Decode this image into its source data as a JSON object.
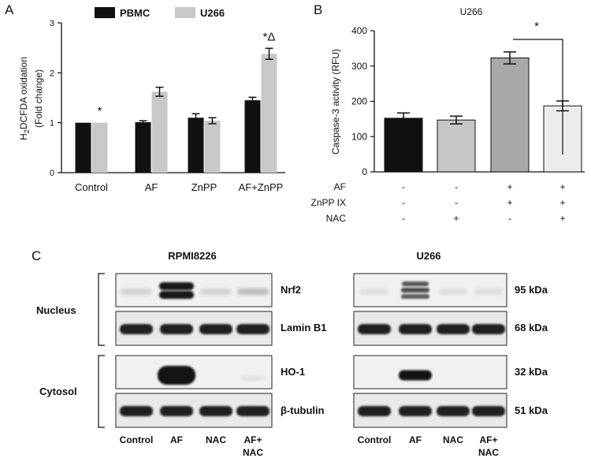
{
  "panel_a": {
    "letter": "A",
    "ylabel_line1": "H",
    "ylabel_sub": "2",
    "ylabel_rest": "DCFDA oxidation",
    "ylabel_line2": "(Fold change)",
    "legend": [
      {
        "name": "PBMC",
        "color": "#111111"
      },
      {
        "name": "U266",
        "color": "#c8c8c8"
      }
    ]
  },
  "panel_b": {
    "letter": "B",
    "title": "U266",
    "ylabel": "Caspase-3 activity (RFU)",
    "sig_mark": "*",
    "treatments": [
      {
        "label": "AF",
        "signs": [
          "-",
          "-",
          "+",
          "+"
        ]
      },
      {
        "label": "ZnPP IX",
        "signs": [
          "-",
          "-",
          "+",
          "+"
        ]
      },
      {
        "label": "NAC",
        "signs": [
          "-",
          "+",
          "-",
          "+"
        ]
      }
    ]
  },
  "panel_c": {
    "letter": "C",
    "blot1_title": "RPMI8226",
    "blot2_title": "U266",
    "group_nucleus": "Nucleus",
    "group_cytosol": "Cytosol",
    "rows": [
      {
        "protein": "Nrf2",
        "size": "95 kDa"
      },
      {
        "protein": "Lamin B1",
        "size": "68 kDa"
      },
      {
        "protein": "HO-1",
        "size": "32 kDa"
      },
      {
        "protein": "β-tubulin",
        "size": "51 kDa"
      }
    ],
    "lanes": [
      {
        "line1": "Control",
        "line2": ""
      },
      {
        "line1": "AF",
        "line2": ""
      },
      {
        "line1": "NAC",
        "line2": ""
      },
      {
        "line1": "AF+",
        "line2": "NAC"
      }
    ]
  },
  "chart_data": [
    {
      "type": "bar",
      "categories": [
        "Control",
        "AF",
        "ZnPP",
        "AF+ZnPP"
      ],
      "series": [
        {
          "name": "PBMC",
          "values": [
            1.0,
            1.01,
            1.1,
            1.45
          ],
          "errors": [
            0.0,
            0.03,
            0.08,
            0.06
          ]
        },
        {
          "name": "U266",
          "values": [
            1.0,
            1.62,
            1.04,
            2.38
          ],
          "errors": [
            0.0,
            0.09,
            0.06,
            0.11
          ]
        }
      ],
      "annotations": [
        "*",
        "",
        "",
        "*Δ"
      ],
      "ylim": [
        0,
        3
      ],
      "yticks": [
        "0",
        "1",
        "2",
        "3"
      ]
    },
    {
      "type": "bar",
      "categories": [
        "1",
        "2",
        "3",
        "4"
      ],
      "values": [
        152,
        147,
        323,
        187
      ],
      "errors": [
        15,
        11,
        17,
        14
      ],
      "colors": [
        "#111111",
        "#c6c6c6",
        "#a8a8a8",
        "#ececec"
      ],
      "ylim": [
        0,
        400
      ],
      "yticks": [
        "0",
        "100",
        "200",
        "300",
        "400"
      ]
    }
  ]
}
